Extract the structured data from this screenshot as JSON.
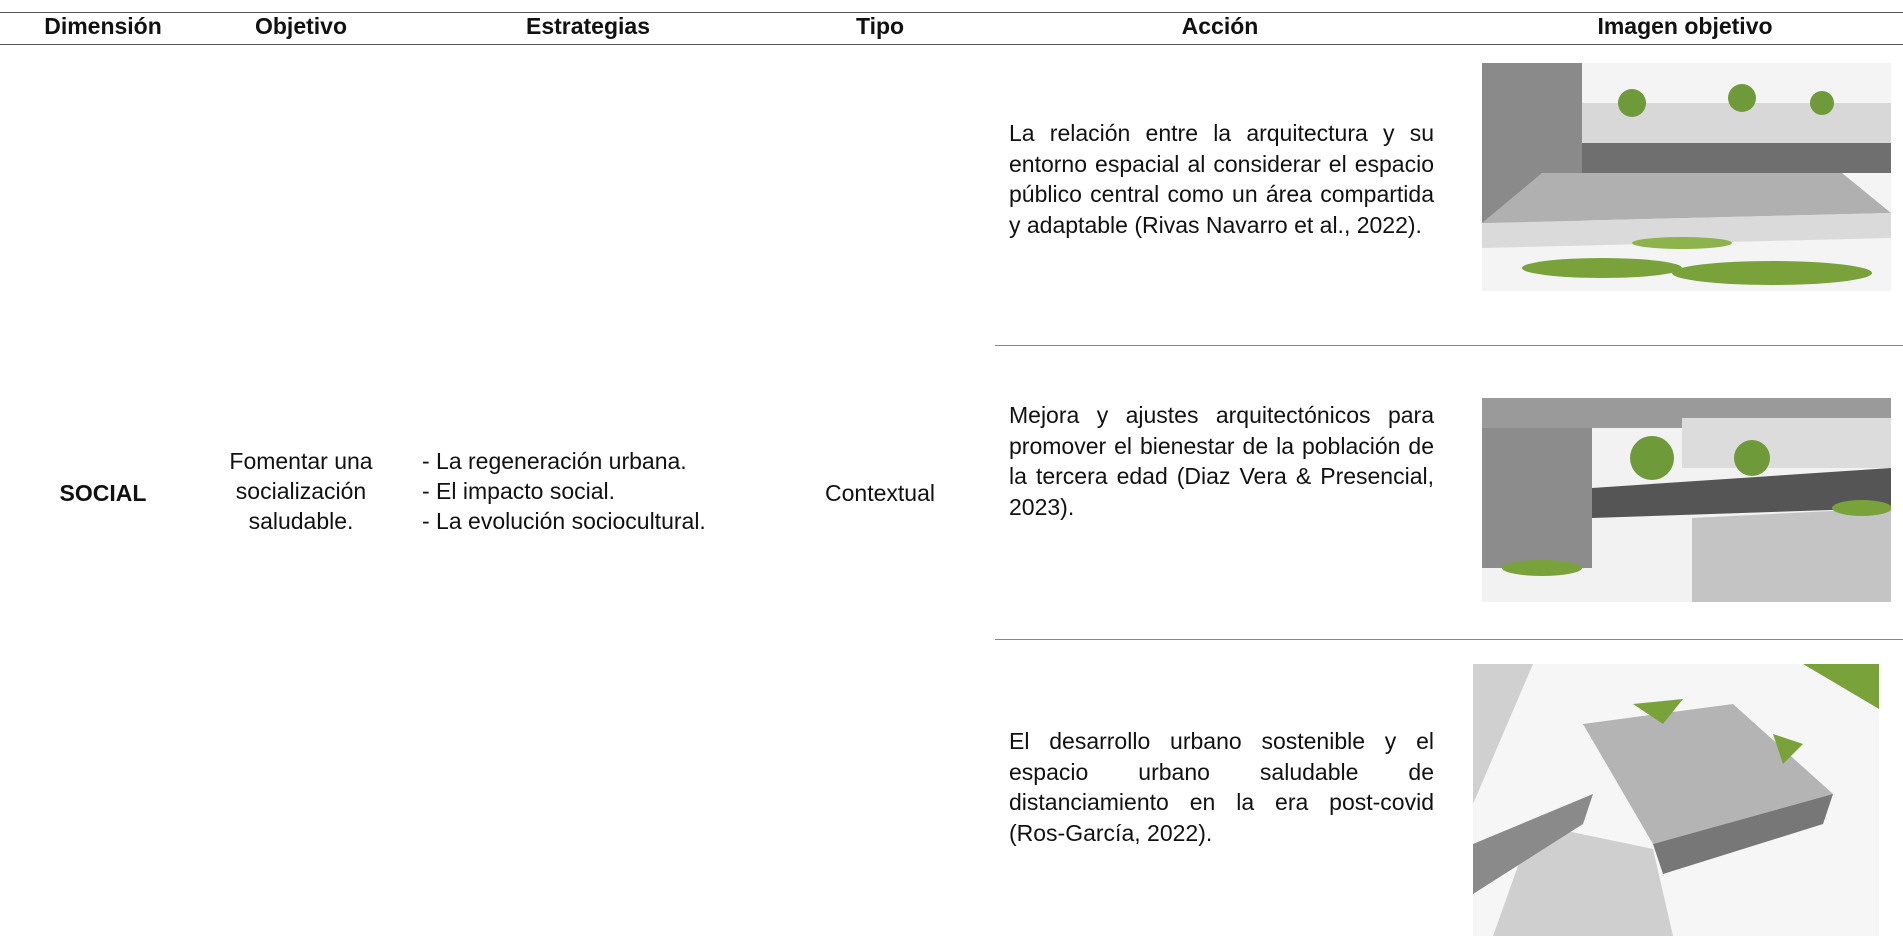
{
  "table": {
    "headers": [
      "Dimensión",
      "Objetivo",
      "Estrategias",
      "Tipo",
      "Acción",
      "Imagen objetivo"
    ],
    "dimension": "SOCIAL",
    "objective": "Fomentar una socialización saludable.",
    "strategies": [
      "- La regeneración urbana.",
      "- El impacto social.",
      "- La evolución sociocultural."
    ],
    "type": "Contextual",
    "actions": [
      "La relación entre la arquitectura y su entorno espacial al considerar el espacio público central como un área compartida y adaptable (Rivas Navarro et al., 2022).",
      "Mejora y ajustes arquitectónicos para promover el bienestar de la población de la tercera edad (Diaz Vera & Presencial, 2023).",
      "El desarrollo urbano sostenible y el espacio urbano saludable de distanciamiento en la era post-covid (Ros-García, 2022)."
    ]
  }
}
